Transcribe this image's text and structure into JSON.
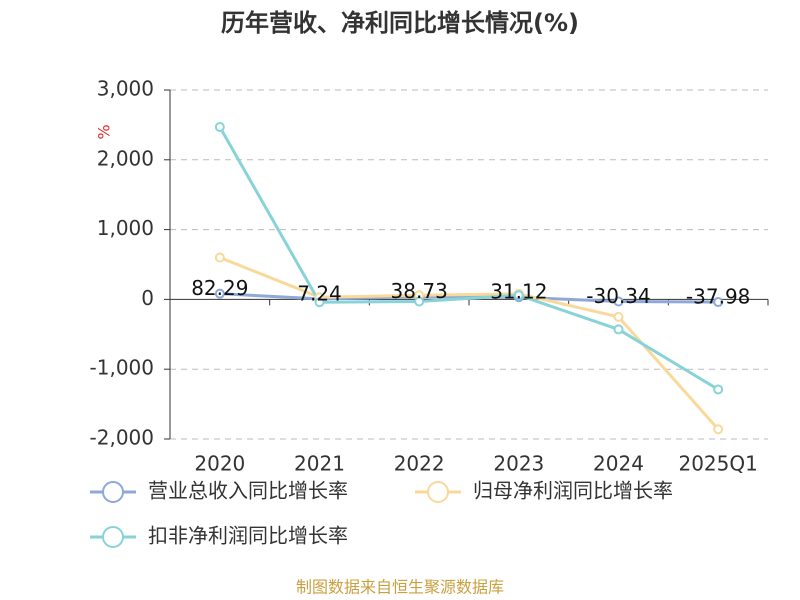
{
  "chart_data": {
    "type": "line",
    "title": "历年营收、净利同比增长情况(%)",
    "y_label": "%",
    "footer": "制图数据来自恒生聚源数据库",
    "categories": [
      "2020",
      "2021",
      "2022",
      "2023",
      "2024",
      "2025Q1"
    ],
    "series": [
      {
        "name": "营业总收入同比增长率",
        "color": "#8fa8d8",
        "values": [
          82.29,
          7.24,
          38.73,
          31.12,
          -30.34,
          -37.98
        ],
        "show_labels": true
      },
      {
        "name": "归母净利润同比增长率",
        "color": "#f9d99a",
        "values": [
          600,
          30,
          60,
          80,
          -250,
          -1860
        ]
      },
      {
        "name": "扣非净利润同比增长率",
        "color": "#88d3d8",
        "values": [
          2470,
          -40,
          -30,
          60,
          -430,
          -1290
        ]
      }
    ],
    "ylim": [
      -2000,
      3000
    ],
    "yticks": [
      {
        "value": -2000,
        "label": "-2,000"
      },
      {
        "value": -1000,
        "label": "-1,000"
      },
      0,
      {
        "value": 1000,
        "label": "1,000"
      },
      {
        "value": 2000,
        "label": "2,000"
      },
      {
        "value": 3000,
        "label": "3,000"
      }
    ],
    "grid": true
  }
}
